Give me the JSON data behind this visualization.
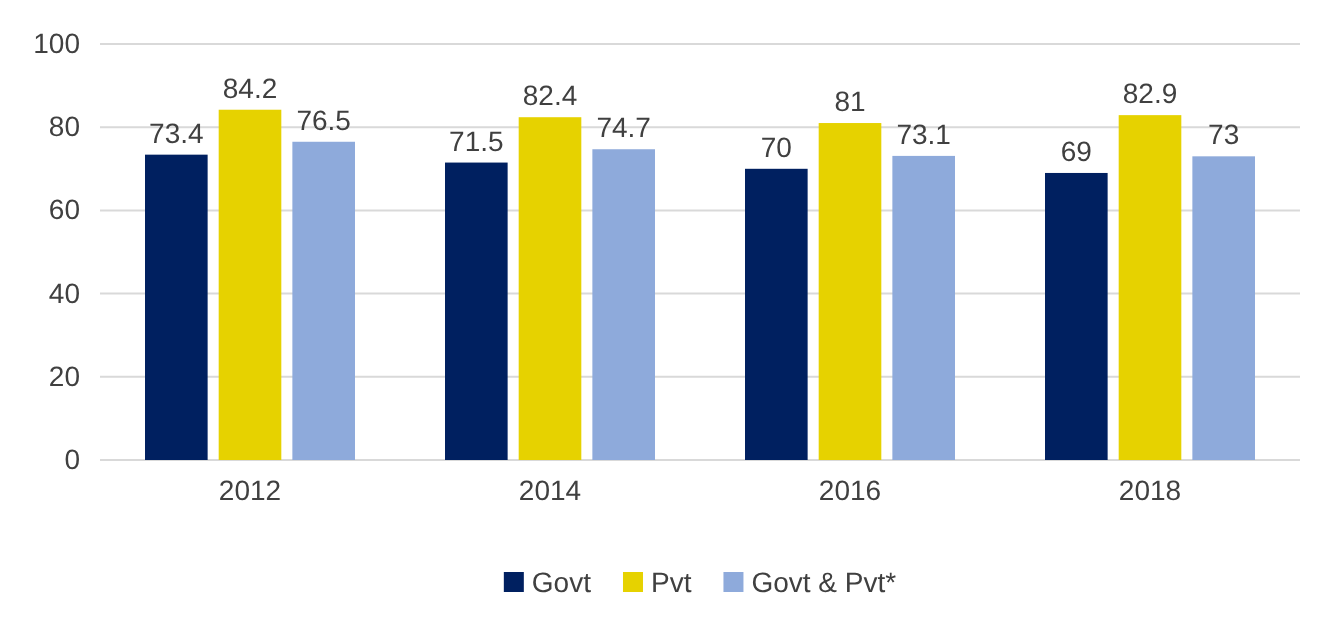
{
  "chart_data": {
    "type": "bar",
    "categories": [
      "2012",
      "2014",
      "2016",
      "2018"
    ],
    "series": [
      {
        "name": "Govt",
        "color": "#002060",
        "values": [
          73.4,
          71.5,
          70,
          69
        ]
      },
      {
        "name": "Pvt",
        "color": "#e6d200",
        "values": [
          84.2,
          82.4,
          81,
          82.9
        ]
      },
      {
        "name": "Govt & Pvt*",
        "color": "#8eaadb",
        "values": [
          76.5,
          74.7,
          73.1,
          73
        ]
      }
    ],
    "ylim": [
      0,
      100
    ],
    "yticks": [
      0,
      20,
      40,
      60,
      80,
      100
    ],
    "grid": "y",
    "legend": "bottom",
    "data_labels": true
  }
}
